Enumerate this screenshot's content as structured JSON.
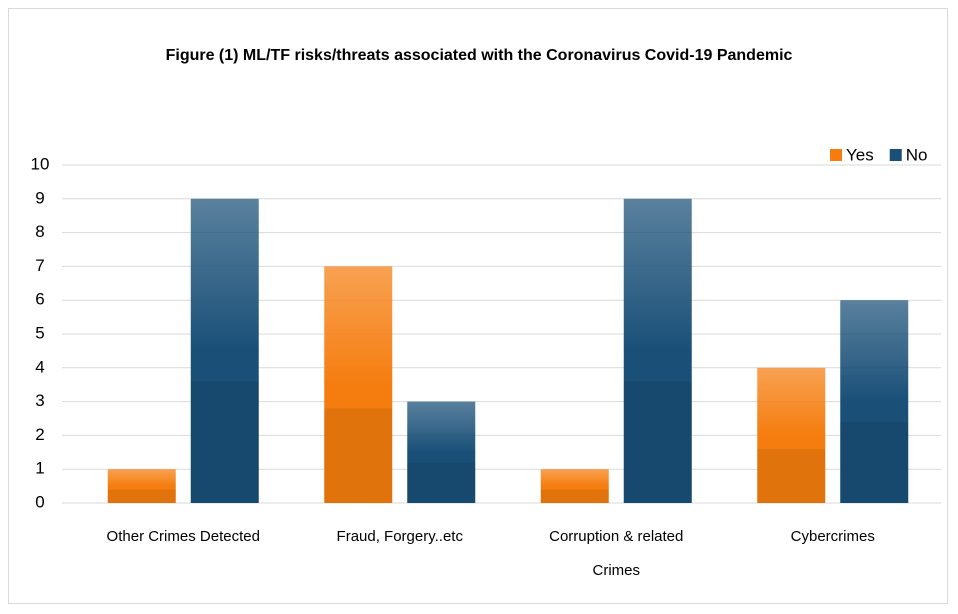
{
  "chart_data": {
    "type": "bar",
    "title": "Figure (1) ML/TF risks/threats associated with the Coronavirus Covid-19 Pandemic",
    "categories": [
      "Other Crimes Detected",
      "Fraud, Forgery..etc",
      "Corruption & related Crimes",
      "Cybercrimes"
    ],
    "series": [
      {
        "name": "Yes",
        "color": "#f57d0f",
        "values": [
          1,
          7,
          1,
          4
        ]
      },
      {
        "name": "No",
        "color": "#1a5078",
        "values": [
          9,
          3,
          9,
          6
        ]
      }
    ],
    "ylim": [
      0,
      10
    ],
    "yticks": [
      0,
      1,
      2,
      3,
      4,
      5,
      6,
      7,
      8,
      9,
      10
    ],
    "grid": true,
    "legend": "top-right"
  }
}
